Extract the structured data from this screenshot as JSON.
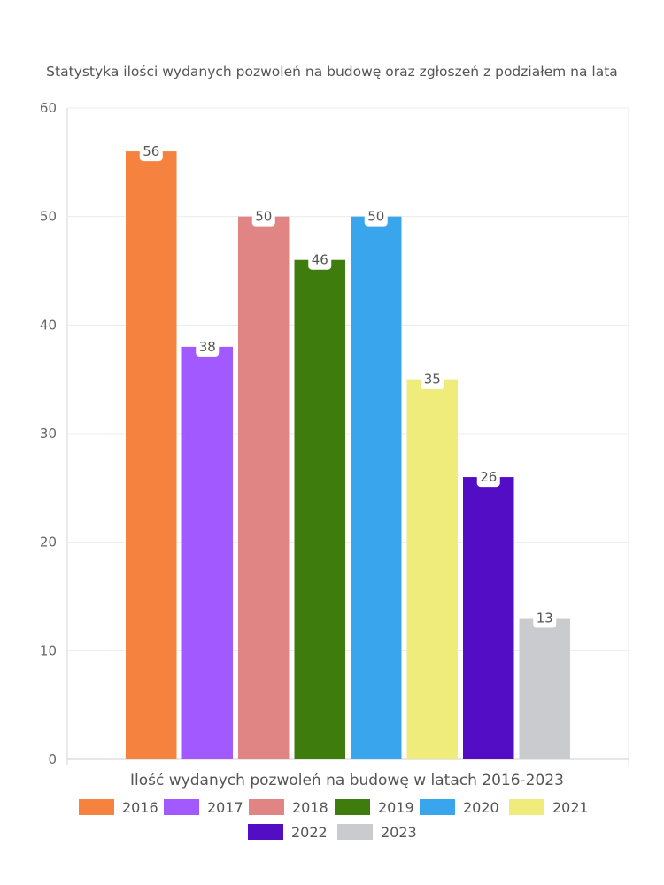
{
  "chart_data": {
    "type": "bar",
    "title": "Statystyka ilości wydanych pozwoleń na budowę oraz zgłoszeń z podziałem na lata",
    "xlabel": "Ilość wydanych pozwoleń na budowę w latach 2016-2023",
    "ylabel": "",
    "ylim": [
      0,
      60
    ],
    "yticks": [
      0,
      10,
      20,
      30,
      40,
      50,
      60
    ],
    "grid": true,
    "legend_position": "bottom",
    "series": [
      {
        "name": "2016",
        "value": 56,
        "color": "#F5823F"
      },
      {
        "name": "2017",
        "value": 38,
        "color": "#A259FF"
      },
      {
        "name": "2018",
        "value": 50,
        "color": "#E08484"
      },
      {
        "name": "2019",
        "value": 46,
        "color": "#3E7C0E"
      },
      {
        "name": "2020",
        "value": 50,
        "color": "#39A5EC"
      },
      {
        "name": "2021",
        "value": 35,
        "color": "#F0EC7C"
      },
      {
        "name": "2022",
        "value": 26,
        "color": "#520DC5"
      },
      {
        "name": "2023",
        "value": 13,
        "color": "#CACBCF"
      }
    ]
  }
}
